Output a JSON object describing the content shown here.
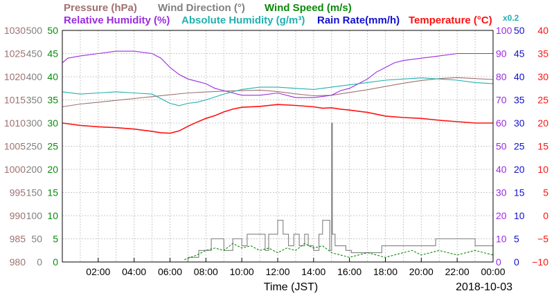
{
  "chart_data": {
    "type": "line",
    "title": "",
    "xlabel": "Time (JST)",
    "date_label": "2018-10-03",
    "x_ticks": [
      "02:00",
      "04:00",
      "06:00",
      "08:00",
      "10:00",
      "12:00",
      "14:00",
      "16:00",
      "18:00",
      "20:00",
      "22:00",
      "00:00"
    ],
    "xlim_hours": [
      0,
      24
    ],
    "grid": true,
    "legend": {
      "row1": [
        {
          "text": "Pressure (hPa)",
          "color": "#a07070"
        },
        {
          "text": "Wind Direction (°)",
          "color": "#808080"
        },
        {
          "text": "Wind Speed (m/s)",
          "color": "#0a8a0a"
        }
      ],
      "row2": [
        {
          "text": "Relative Humidity (%)",
          "color": "#9a2be0"
        },
        {
          "text": "Absolute Humidity (g/m³)",
          "color": "#20b0b0"
        },
        {
          "text": "Rain Rate(mm/h)",
          "color": "#1010d0"
        },
        {
          "text": "Temperature (°C)",
          "color": "#ff1010"
        }
      ],
      "abs_humidity_scale": "x0.2"
    },
    "axes": {
      "pressure": {
        "color": "#a07070",
        "range": [
          980,
          1030
        ],
        "ticks": [
          "1030",
          "1025",
          "1020",
          "1015",
          "1010",
          "1005",
          "1000",
          "995",
          "990",
          "985",
          "980"
        ]
      },
      "wind_direction": {
        "color": "#808080",
        "range": [
          0,
          500
        ],
        "ticks": [
          "500",
          "450",
          "400",
          "350",
          "300",
          "250",
          "200",
          "150",
          "100",
          "50",
          "0"
        ]
      },
      "wind_speed": {
        "color": "#0a8a0a",
        "range": [
          0,
          50
        ],
        "ticks": [
          "50",
          "45",
          "40",
          "35",
          "30",
          "25",
          "20",
          "15",
          "10",
          "5",
          "0"
        ]
      },
      "humidity": {
        "color": "#9a2be0",
        "range": [
          0,
          100
        ],
        "ticks": [
          "100",
          "90",
          "80",
          "70",
          "60",
          "50",
          "40",
          "30",
          "20",
          "10",
          "0"
        ]
      },
      "rain_rate": {
        "color": "#1010d0",
        "range": [
          0,
          50
        ],
        "ticks": [
          "50",
          "45",
          "40",
          "35",
          "30",
          "25",
          "20",
          "15",
          "10",
          "5",
          "0"
        ]
      },
      "temperature": {
        "color": "#ff1010",
        "range": [
          -10,
          40
        ],
        "ticks": [
          "40",
          "35",
          "30",
          "25",
          "20",
          "15",
          "10",
          "5",
          "0",
          "−5",
          "−10"
        ]
      }
    },
    "series": [
      {
        "name": "Pressure (hPa)",
        "color": "#a07070",
        "x": [
          0,
          1,
          2,
          3,
          4,
          5,
          6,
          7,
          8,
          9,
          10,
          11,
          12,
          13,
          14,
          15,
          16,
          17,
          18,
          19,
          20,
          21,
          22,
          23,
          24
        ],
        "y": [
          1013.5,
          1014.1,
          1014.5,
          1014.9,
          1015.3,
          1015.7,
          1016.1,
          1016.5,
          1016.7,
          1016.9,
          1017.0,
          1017.1,
          1016.8,
          1016.3,
          1015.9,
          1016.0,
          1016.6,
          1017.2,
          1017.9,
          1018.6,
          1019.2,
          1019.6,
          1019.8,
          1019.6,
          1019.4
        ]
      },
      {
        "name": "Relative Humidity (%)",
        "color": "#9a2be0",
        "x": [
          0,
          0.3,
          1,
          2,
          3,
          4,
          5,
          5.5,
          6,
          6.5,
          7,
          7.5,
          8,
          8.5,
          9,
          9.5,
          10,
          11,
          12,
          13,
          14,
          15,
          15.5,
          16,
          16.5,
          17,
          17.5,
          18,
          18.5,
          19,
          20,
          21,
          22,
          23,
          24
        ],
        "y": [
          86,
          88,
          89,
          90,
          91,
          91,
          90,
          88,
          84,
          81,
          79,
          78,
          77,
          75,
          74,
          73,
          72,
          72,
          73,
          71,
          71,
          72,
          74,
          75,
          77,
          79,
          82,
          84,
          86,
          87,
          88,
          89,
          90,
          90,
          90
        ]
      },
      {
        "name": "Absolute Humidity (g/m³)",
        "color": "#20b0b0",
        "x": [
          0,
          1,
          2,
          3,
          4,
          5,
          6,
          6.5,
          7,
          7.5,
          8,
          9,
          10,
          11,
          12,
          13,
          14,
          15,
          16,
          17,
          18,
          19,
          20,
          21,
          22,
          23,
          24
        ],
        "y": [
          73.5,
          72.5,
          73.0,
          73.5,
          73.0,
          72.5,
          68.5,
          67.5,
          68.5,
          69.0,
          70.0,
          72.5,
          74.5,
          75.5,
          75.5,
          75.0,
          74.5,
          75.5,
          76.5,
          77.5,
          78.5,
          79.0,
          79.5,
          79.0,
          78.5,
          77.5,
          77.0
        ]
      },
      {
        "name": "Temperature (°C)",
        "color": "#ff1010",
        "x": [
          0,
          1,
          2,
          3,
          4,
          5,
          5.5,
          6,
          6.5,
          7,
          7.5,
          8,
          8.5,
          9,
          9.5,
          10,
          11,
          12,
          13,
          14,
          14.5,
          15,
          15.5,
          16,
          17,
          18,
          19,
          20,
          21,
          22,
          23,
          24
        ],
        "y": [
          20.0,
          19.5,
          19.2,
          19.0,
          18.7,
          18.2,
          17.9,
          17.8,
          18.3,
          19.3,
          20.2,
          21.0,
          21.6,
          22.4,
          23.0,
          23.4,
          23.6,
          24.0,
          23.8,
          23.5,
          23.2,
          23.3,
          23.0,
          22.8,
          22.3,
          21.5,
          21.2,
          21.0,
          20.6,
          20.3,
          20.0,
          20.0
        ]
      },
      {
        "name": "Wind Direction (°)",
        "color": "#808080",
        "step": true,
        "x": [
          0,
          7.0,
          7.6,
          8.3,
          9.0,
          9.5,
          10.0,
          10.3,
          11.3,
          11.5,
          12.0,
          12.3,
          12.6,
          12.9,
          13.2,
          13.5,
          13.7,
          14.0,
          14.3,
          14.5,
          14.9,
          15.0,
          15.05,
          15.2,
          15.8,
          16.1,
          17.5,
          17.8,
          20.0,
          20.8,
          22.8,
          23.0,
          24.0
        ],
        "y": [
          0,
          10,
          25,
          50,
          25,
          50,
          35,
          60,
          25,
          60,
          90,
          60,
          35,
          60,
          35,
          60,
          35,
          25,
          60,
          90,
          25,
          300,
          60,
          35,
          25,
          20,
          20,
          35,
          35,
          50,
          50,
          35,
          35
        ]
      },
      {
        "name": "Wind Speed (m/s)",
        "color": "#0a8a0a",
        "x": [
          6.8,
          7.5,
          8.0,
          8.5,
          9.0,
          9.5,
          10.0,
          10.5,
          11.0,
          11.5,
          12.0,
          12.5,
          13.0,
          13.5,
          14.0,
          14.5,
          15.0,
          15.5,
          16.0,
          16.5,
          17.0,
          17.5,
          18.0,
          18.5,
          19.0,
          19.5,
          20.0,
          20.5,
          21.0,
          21.5,
          22.0,
          22.5,
          23.0,
          23.5,
          24.0
        ],
        "y": [
          0.5,
          1.5,
          2.5,
          3.0,
          2.5,
          4.0,
          3.0,
          3.5,
          2.5,
          3.0,
          2.0,
          3.0,
          2.5,
          4.0,
          3.0,
          3.5,
          2.0,
          1.5,
          1.0,
          1.5,
          2.0,
          1.5,
          1.0,
          1.5,
          2.0,
          2.5,
          1.5,
          2.0,
          2.5,
          2.0,
          1.5,
          2.0,
          2.5,
          2.0,
          1.5
        ]
      },
      {
        "name": "Rain Rate(mm/h)",
        "color": "#1010d0",
        "x": [
          0,
          24
        ],
        "y": [
          0,
          0
        ]
      }
    ]
  }
}
